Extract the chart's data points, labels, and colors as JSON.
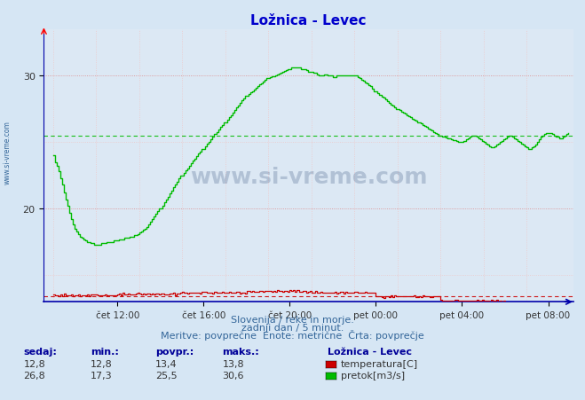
{
  "title": "Ložnica - Levec",
  "bg_color": "#d6e6f4",
  "plot_bg_color": "#dce8f4",
  "title_color": "#0000cc",
  "grid_color_red": "#dd8888",
  "grid_color_light": "#eec8c8",
  "axis_color": "#0000aa",
  "x_tick_labels": [
    "čet 12:00",
    "čet 16:00",
    "čet 20:00",
    "pet 00:00",
    "pet 04:00",
    "pet 08:00"
  ],
  "x_tick_positions": [
    36,
    84,
    132,
    180,
    228,
    276
  ],
  "y_ticks": [
    20,
    30
  ],
  "ylim": [
    13.0,
    33.5
  ],
  "xlim": [
    -5,
    290
  ],
  "temp_avg": 13.4,
  "flow_avg": 25.5,
  "watermark": "www.si-vreme.com",
  "subtitle1": "Slovenija / reke in morje.",
  "subtitle2": "zadnji dan / 5 minut.",
  "subtitle3": "Meritve: povprečne  Enote: metrične  Črta: povprečje",
  "legend_title": "Ložnica - Levec",
  "legend_rows": [
    {
      "label": "temperatura[C]",
      "color": "#cc0000",
      "sedaj": "12,8",
      "min": "12,8",
      "povpr": "13,4",
      "maks": "13,8"
    },
    {
      "label": "pretok[m3/s]",
      "color": "#00bb00",
      "sedaj": "26,8",
      "min": "17,3",
      "povpr": "25,5",
      "maks": "30,6"
    }
  ],
  "temp_color": "#cc0000",
  "flow_color": "#00bb00"
}
